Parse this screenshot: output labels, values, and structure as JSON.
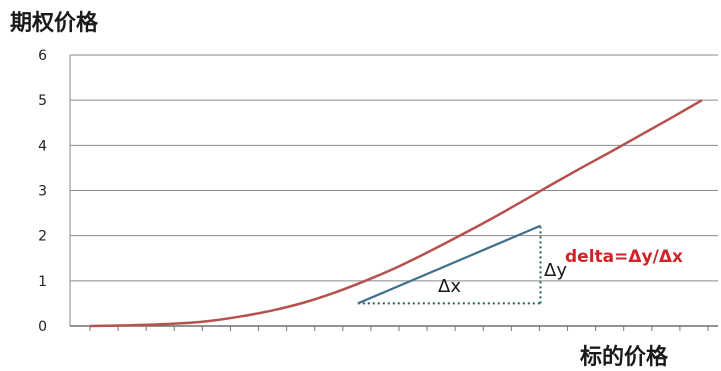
{
  "chart_data": {
    "type": "line",
    "ylabel": "期权价格",
    "xlabel": "标的价格",
    "ylim": [
      0,
      6
    ],
    "y_ticks": [
      "0",
      "1",
      "2",
      "3",
      "4",
      "5",
      "6"
    ],
    "grid": "horizontal",
    "x_tick_count": 23,
    "series": [
      {
        "color": "#b5524f",
        "points": [
          [
            0.0,
            0.0
          ],
          [
            0.05,
            0.01
          ],
          [
            0.1,
            0.03
          ],
          [
            0.15,
            0.06
          ],
          [
            0.2,
            0.12
          ],
          [
            0.25,
            0.22
          ],
          [
            0.3,
            0.35
          ],
          [
            0.35,
            0.52
          ],
          [
            0.4,
            0.74
          ],
          [
            0.45,
            1.0
          ],
          [
            0.5,
            1.29
          ],
          [
            0.55,
            1.62
          ],
          [
            0.6,
            1.97
          ],
          [
            0.65,
            2.33
          ],
          [
            0.7,
            2.71
          ],
          [
            0.75,
            3.1
          ],
          [
            0.8,
            3.48
          ],
          [
            0.85,
            3.85
          ],
          [
            0.9,
            4.23
          ],
          [
            0.95,
            4.61
          ],
          [
            1.0,
            5.0
          ]
        ]
      }
    ],
    "tangent": {
      "color": "#3f6f8f",
      "start": [
        0.4376,
        0.5
      ],
      "end": [
        0.7361,
        2.22
      ]
    },
    "annotations": {
      "dx_label": "Δx",
      "dy_label": "Δy",
      "formula": "delta=Δy/Δx",
      "formula_color": "#d2232a"
    }
  }
}
